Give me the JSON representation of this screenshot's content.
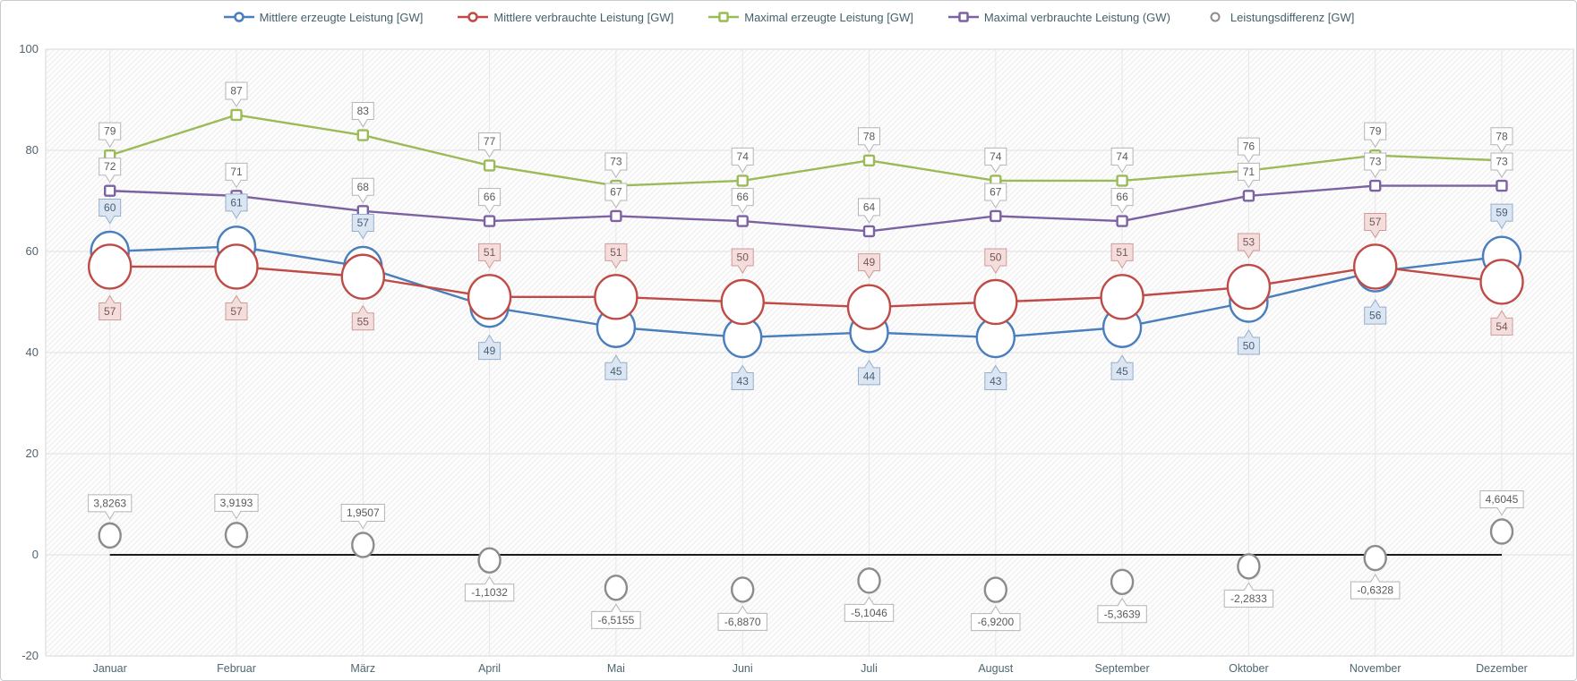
{
  "legend": {
    "items": [
      {
        "label": "Mittlere erzeugte Leistung [GW]",
        "color": "#4a7ebc",
        "marker": "line-circle"
      },
      {
        "label": "Mittlere verbrauchte Leistung [GW]",
        "color": "#bf4b47",
        "marker": "line-circle"
      },
      {
        "label": "Maximal erzeugte Leistung [GW]",
        "color": "#9bba58",
        "marker": "line-square"
      },
      {
        "label": "Maximal verbrauchte Leistung (GW)",
        "color": "#7d62a3",
        "marker": "line-square"
      },
      {
        "label": "Leistungsdifferenz [GW]",
        "color": "#8c8c8c",
        "marker": "circle-only"
      }
    ]
  },
  "yaxis": {
    "ticks": [
      100,
      80,
      60,
      40,
      20,
      0,
      -20
    ]
  },
  "xaxis": {
    "months": [
      "Januar",
      "Februar",
      "März",
      "April",
      "Mai",
      "Juni",
      "Juli",
      "August",
      "September",
      "Oktober",
      "November",
      "Dezember"
    ]
  },
  "styles": {
    "callouts": {
      "white": {
        "bg": "#ffffff",
        "border": "#b5b5b5",
        "text": "#5a5a5a"
      },
      "blue": {
        "bg": "#dce6f2",
        "border": "#94aecd",
        "text": "#48607a"
      },
      "red": {
        "bg": "#f4dedd",
        "border": "#cf9a97",
        "text": "#7b5654"
      }
    },
    "zero_line_color": "#1c1c1c",
    "grid_color": "#e1e1e1"
  },
  "chart_data": {
    "type": "line",
    "title": "",
    "xlabel": "",
    "ylabel": "",
    "ylim": [
      -20,
      100
    ],
    "grid": true,
    "legend_position": "top",
    "categories": [
      "Januar",
      "Februar",
      "März",
      "April",
      "Mai",
      "Juni",
      "Juli",
      "August",
      "September",
      "Oktober",
      "November",
      "Dezember"
    ],
    "series": [
      {
        "name": "Mittlere erzeugte Leistung [GW]",
        "color": "#4a7ebc",
        "marker": "big-circle",
        "marker_radius": 21,
        "has_line": true,
        "values": [
          60,
          61,
          57,
          49,
          45,
          43,
          44,
          43,
          45,
          50,
          56,
          59
        ],
        "labels": [
          "60",
          "61",
          "57",
          "49",
          "45",
          "43",
          "44",
          "43",
          "45",
          "50",
          "56",
          "59"
        ],
        "label_style": "blue",
        "label_offset": 49,
        "label_sides": [
          "above",
          "above",
          "above",
          "below",
          "below",
          "below",
          "below",
          "below",
          "below",
          "below",
          "below",
          "above"
        ]
      },
      {
        "name": "Mittlere verbrauchte Leistung [GW]",
        "color": "#bf4b47",
        "marker": "big-circle",
        "marker_radius": 23.5,
        "has_line": true,
        "values": [
          57,
          57,
          55,
          51,
          51,
          50,
          49,
          50,
          51,
          53,
          57,
          54
        ],
        "labels": [
          "57",
          "57",
          "55",
          "51",
          "51",
          "50",
          "49",
          "50",
          "51",
          "53",
          "57",
          "54"
        ],
        "label_style": "red",
        "label_offset": 50,
        "label_sides": [
          "below",
          "below",
          "below",
          "above",
          "above",
          "above",
          "above",
          "above",
          "above",
          "above",
          "above",
          "below"
        ]
      },
      {
        "name": "Maximal erzeugte Leistung [GW]",
        "color": "#9bba58",
        "marker": "square",
        "marker_size": 11,
        "has_line": true,
        "values": [
          79,
          87,
          83,
          77,
          73,
          74,
          78,
          74,
          74,
          76,
          79,
          78
        ],
        "labels": [
          "79",
          "87",
          "83",
          "77",
          "73",
          "74",
          "78",
          "74",
          "74",
          "76",
          "79",
          "78"
        ],
        "label_style": "white",
        "label_offset": 27,
        "label_sides": [
          "above",
          "above",
          "above",
          "above",
          "above",
          "above",
          "above",
          "above",
          "above",
          "above",
          "above",
          "above"
        ]
      },
      {
        "name": "Maximal verbrauchte Leistung (GW)",
        "color": "#7d62a3",
        "marker": "square",
        "marker_size": 11,
        "has_line": true,
        "values": [
          72,
          71,
          68,
          66,
          67,
          66,
          64,
          67,
          66,
          71,
          73,
          73
        ],
        "labels": [
          "72",
          "71",
          "68",
          "66",
          "67",
          "66",
          "64",
          "67",
          "66",
          "71",
          "73",
          "73"
        ],
        "label_style": "white",
        "label_offset": 27,
        "label_sides": [
          "above",
          "above",
          "above",
          "above",
          "above",
          "above",
          "above",
          "above",
          "above",
          "above",
          "above",
          "above"
        ]
      },
      {
        "name": "Leistungsdifferenz [GW]",
        "color": "#8c8c8c",
        "marker": "small-circle",
        "marker_radius": 12.5,
        "has_line": false,
        "zero_line": true,
        "values": [
          3.8263,
          3.9193,
          1.9507,
          -1.1032,
          -6.5155,
          -6.887,
          -5.1046,
          -6.92,
          -5.3639,
          -2.2833,
          -0.6328,
          4.6045
        ],
        "labels": [
          "3,8263",
          "3,9193",
          "1,9507",
          "-1,1032",
          "-6,5155",
          "-6,8870",
          "-5,1046",
          "-6,9200",
          "-5,3639",
          "-2,2833",
          "-0,6328",
          "4,6045"
        ],
        "label_style": "white",
        "label_offset": 36,
        "label_sides": [
          "above",
          "above",
          "above",
          "below",
          "below",
          "below",
          "below",
          "below",
          "below",
          "below",
          "below",
          "above"
        ]
      }
    ]
  }
}
